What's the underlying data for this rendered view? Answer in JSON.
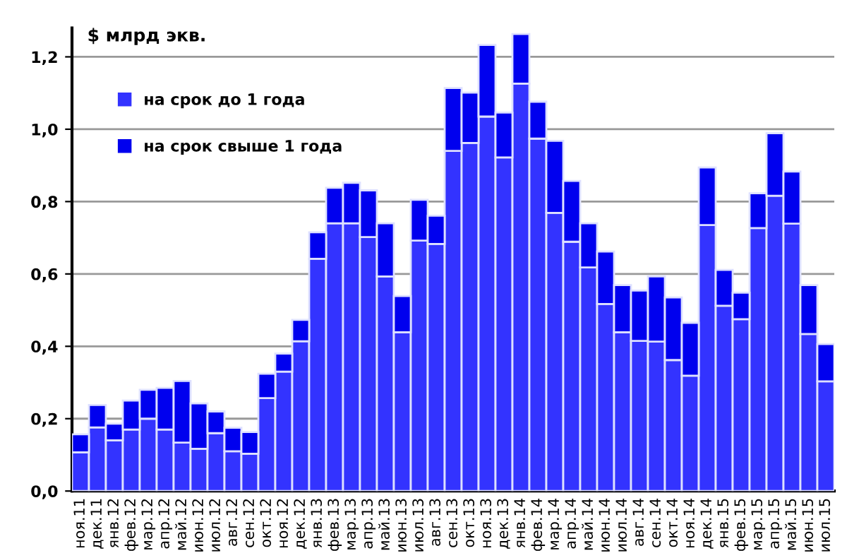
{
  "chart_data": {
    "type": "bar",
    "stacked": true,
    "title": "$ млрд экв.",
    "categories": [
      "ноя.11",
      "дек.11",
      "янв.12",
      "фев.12",
      "мар.12",
      "апр.12",
      "май.12",
      "июн.12",
      "июл.12",
      "авг.12",
      "сен.12",
      "окт.12",
      "ноя.12",
      "дек.12",
      "янв.13",
      "фев.13",
      "мар.13",
      "апр.13",
      "май.13",
      "июн.13",
      "июл.13",
      "авг.13",
      "сен.13",
      "окт.13",
      "ноя.13",
      "дек.13",
      "янв.14",
      "фев.14",
      "мар.14",
      "апр.14",
      "май.14",
      "июн.14",
      "июл.14",
      "авг.14",
      "сен.14",
      "окт.14",
      "ноя.14",
      "дек.14",
      "янв.15",
      "фев.15",
      "мар.15",
      "апр.15",
      "май.15",
      "июн.15",
      "июл.15"
    ],
    "series": [
      {
        "name": "на срок до 1 года",
        "color": "#3333ff",
        "values": [
          0.107,
          0.176,
          0.14,
          0.17,
          0.2,
          0.17,
          0.134,
          0.117,
          0.16,
          0.11,
          0.103,
          0.257,
          0.33,
          0.414,
          0.642,
          0.74,
          0.74,
          0.702,
          0.593,
          0.439,
          0.692,
          0.683,
          0.94,
          0.962,
          1.035,
          0.922,
          1.126,
          0.974,
          0.769,
          0.689,
          0.618,
          0.517,
          0.439,
          0.415,
          0.413,
          0.362,
          0.319,
          0.735,
          0.512,
          0.475,
          0.727,
          0.816,
          0.739,
          0.434,
          0.303
        ]
      },
      {
        "name": "на срок свыше 1 года",
        "color": "#0000ee",
        "values": [
          0.05,
          0.062,
          0.046,
          0.08,
          0.08,
          0.115,
          0.17,
          0.125,
          0.06,
          0.065,
          0.06,
          0.067,
          0.05,
          0.059,
          0.073,
          0.098,
          0.112,
          0.129,
          0.147,
          0.1,
          0.113,
          0.078,
          0.174,
          0.139,
          0.198,
          0.124,
          0.137,
          0.102,
          0.199,
          0.168,
          0.122,
          0.145,
          0.13,
          0.139,
          0.18,
          0.173,
          0.146,
          0.159,
          0.099,
          0.073,
          0.096,
          0.173,
          0.144,
          0.135,
          0.103
        ]
      }
    ],
    "ylim": [
      0,
      1.28
    ],
    "yticks": [
      {
        "value": 0,
        "label": "0,0"
      },
      {
        "value": 0.2,
        "label": "0,2"
      },
      {
        "value": 0.4,
        "label": "0,4"
      },
      {
        "value": 0.6,
        "label": "0,6"
      },
      {
        "value": 0.8,
        "label": "0,8"
      },
      {
        "value": 1.0,
        "label": "1,0"
      },
      {
        "value": 1.2,
        "label": "1,2"
      }
    ],
    "grid": "y",
    "legend": "top left"
  }
}
